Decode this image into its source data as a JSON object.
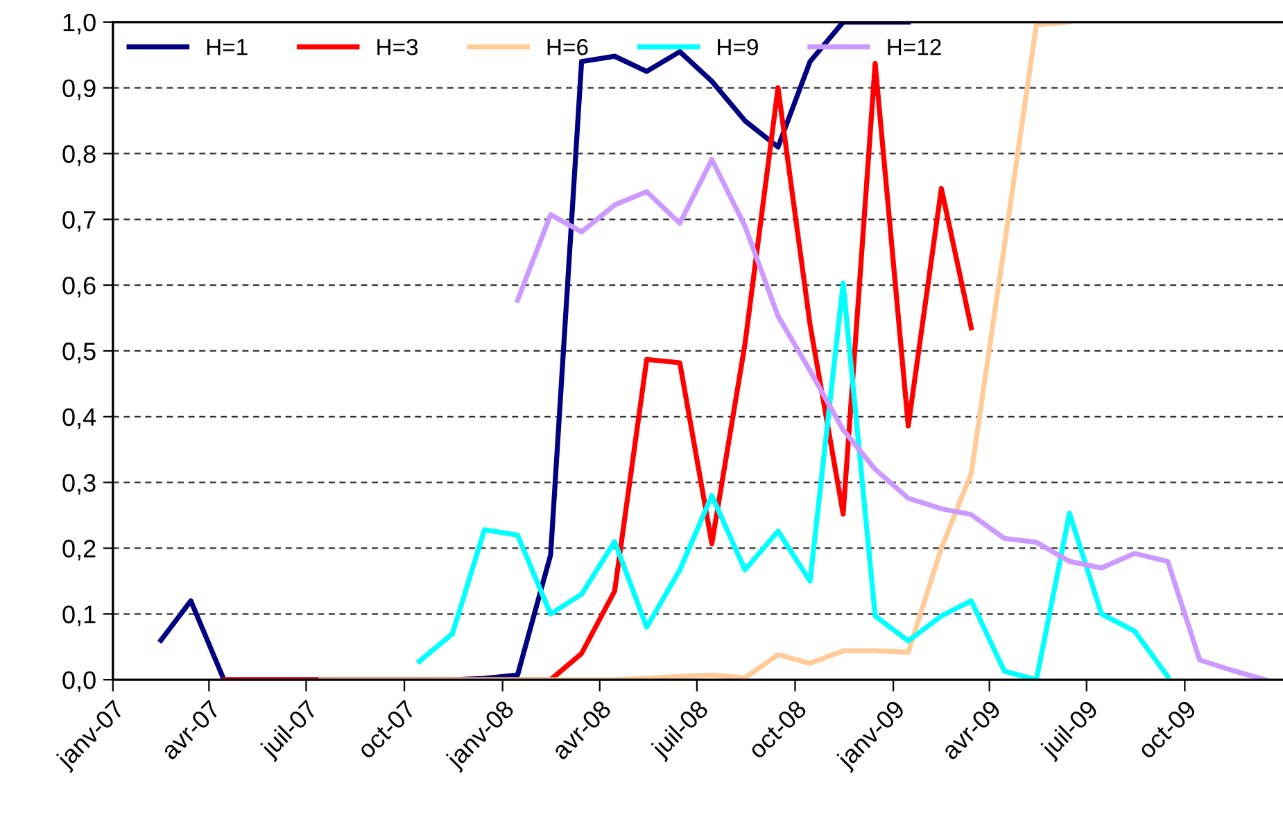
{
  "chart_data": {
    "type": "line",
    "x": [
      "2007-02-15",
      "2007-03-15",
      "2007-04-15",
      "2007-05-15",
      "2007-06-15",
      "2007-07-15",
      "2007-08-15",
      "2007-09-15",
      "2007-10-15",
      "2007-11-15",
      "2007-12-15",
      "2008-01-15",
      "2008-02-15",
      "2008-03-15",
      "2008-04-15",
      "2008-05-15",
      "2008-06-15",
      "2008-07-15",
      "2008-08-15",
      "2008-09-15",
      "2008-10-15",
      "2008-11-15",
      "2008-12-15",
      "2009-01-15",
      "2009-02-15",
      "2009-03-15",
      "2009-04-15",
      "2009-05-15",
      "2009-06-15",
      "2009-07-15",
      "2009-08-15",
      "2009-09-15",
      "2009-10-15",
      "2009-11-15",
      "2009-12-15"
    ],
    "series": [
      {
        "name": "H=1",
        "color": "#000080",
        "values": [
          0.06,
          0.12,
          0,
          0,
          0,
          0,
          0,
          0,
          0,
          0,
          0.002,
          0.007,
          0.19,
          0.94,
          0.948,
          0.925,
          0.955,
          0.91,
          0.85,
          0.81,
          0.94,
          1.0,
          1.0,
          1.0,
          null,
          null,
          null,
          null,
          null,
          null,
          null,
          null,
          null,
          null,
          null
        ]
      },
      {
        "name": "H=3",
        "color": "#ff0000",
        "values": [
          null,
          null,
          0,
          0,
          0,
          0,
          0,
          0,
          0,
          0,
          0,
          0,
          0,
          0.04,
          0.135,
          0.487,
          0.482,
          0.207,
          0.51,
          0.9,
          0.54,
          0.252,
          0.937,
          0.386,
          0.747,
          0.535,
          null,
          null,
          null,
          null,
          null,
          null,
          null,
          null,
          null
        ]
      },
      {
        "name": "H=6",
        "color": "#ffcc99",
        "values": [
          null,
          null,
          null,
          null,
          null,
          0,
          0,
          0,
          0,
          0,
          0,
          0,
          0,
          0,
          0,
          0.002,
          0.005,
          0.007,
          0.003,
          0.038,
          0.025,
          0.044,
          0.044,
          0.042,
          0.2,
          0.314,
          0.66,
          0.996,
          1.0,
          null,
          null,
          null,
          null,
          null,
          null
        ]
      },
      {
        "name": "H=9",
        "color": "#00ffff",
        "values": [
          null,
          null,
          null,
          null,
          null,
          null,
          null,
          null,
          0.028,
          0.07,
          0.228,
          0.22,
          0.1,
          0.13,
          0.21,
          0.08,
          0.167,
          0.28,
          0.167,
          0.226,
          0.15,
          0.603,
          0.097,
          0.059,
          0.097,
          0.12,
          0.013,
          0,
          0.253,
          0.1,
          0.074,
          0.005,
          null,
          null,
          null
        ]
      },
      {
        "name": "H=12",
        "color": "#cc99ff",
        "values": [
          null,
          null,
          null,
          null,
          null,
          null,
          null,
          null,
          null,
          null,
          null,
          0.577,
          0.707,
          0.681,
          0.722,
          0.742,
          0.694,
          0.791,
          0.69,
          0.553,
          0.47,
          0.38,
          0.32,
          0.276,
          0.26,
          0.251,
          0.215,
          0.209,
          0.18,
          0.17,
          0.192,
          0.18,
          0.03,
          0.014,
          0
        ]
      }
    ],
    "xlim": [
      "2007-01-01",
      "2010-01-01"
    ],
    "xticks": [
      {
        "value": "2007-01-01",
        "label": "janv-07"
      },
      {
        "value": "2007-04-01",
        "label": "avr-07"
      },
      {
        "value": "2007-07-01",
        "label": "juil-07"
      },
      {
        "value": "2007-10-01",
        "label": "oct-07"
      },
      {
        "value": "2008-01-01",
        "label": "janv-08"
      },
      {
        "value": "2008-04-01",
        "label": "avr-08"
      },
      {
        "value": "2008-07-01",
        "label": "juil-08"
      },
      {
        "value": "2008-10-01",
        "label": "oct-08"
      },
      {
        "value": "2009-01-01",
        "label": "janv-09"
      },
      {
        "value": "2009-04-01",
        "label": "avr-09"
      },
      {
        "value": "2009-07-01",
        "label": "juil-09"
      },
      {
        "value": "2009-10-01",
        "label": "oct-09"
      }
    ],
    "ylim": [
      0,
      1
    ],
    "yticks": [
      {
        "value": 0,
        "label": "0,0"
      },
      {
        "value": 0.1,
        "label": "0,1"
      },
      {
        "value": 0.2,
        "label": "0,2"
      },
      {
        "value": 0.3,
        "label": "0,3"
      },
      {
        "value": 0.4,
        "label": "0,4"
      },
      {
        "value": 0.5,
        "label": "0,5"
      },
      {
        "value": 0.6,
        "label": "0,6"
      },
      {
        "value": 0.7,
        "label": "0,7"
      },
      {
        "value": 0.8,
        "label": "0,8"
      },
      {
        "value": 0.9,
        "label": "0,9"
      },
      {
        "value": 1,
        "label": "1,0"
      }
    ],
    "grid": "y",
    "legend": "top left",
    "marker": "none",
    "line_style": "solid"
  }
}
